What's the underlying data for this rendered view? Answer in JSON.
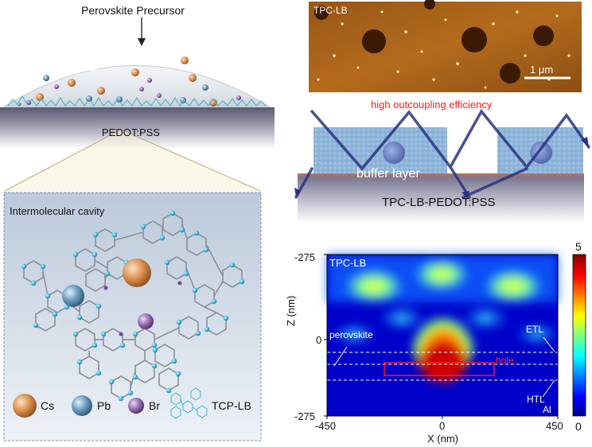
{
  "left_top": {
    "precursor_label": "Perovskite Precursor",
    "substrate_label": "PEDOT:PSS"
  },
  "cavity_panel": {
    "title": "Intermolecular cavity",
    "legend": [
      {
        "label": "Cs",
        "color": "#d88a4a"
      },
      {
        "label": "Pb",
        "color": "#5f93b8"
      },
      {
        "label": "Br",
        "color": "#8a64a8"
      },
      {
        "label": "TCP-LB",
        "color": "#36b8d8"
      }
    ]
  },
  "afm": {
    "label": "TPC-LB",
    "scalebar": "1 μm"
  },
  "outcoupling": {
    "caption": "high outcoupling efficiency",
    "buffer_label": "buffer layer",
    "substrate_label": "TPC-LB-PEDOT:PSS"
  },
  "field_map": {
    "inset_label": "TPC-LB",
    "xlabel": "X (nm)",
    "ylabel": "Z (nm)",
    "xticks": [
      "-450",
      "0",
      "450"
    ],
    "yticks": [
      "-275",
      "0",
      "-275"
    ],
    "colorbar_ticks": [
      "5",
      "0"
    ],
    "layers": [
      "perovskite",
      "ETL",
      "hole",
      "HTL",
      "Al"
    ]
  }
}
